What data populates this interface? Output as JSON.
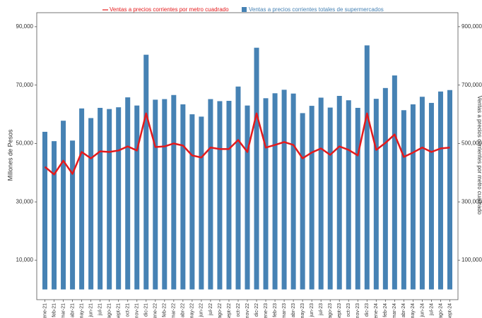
{
  "chart_data": {
    "type": "bar-line",
    "legend_line": "Ventas a precios corrientes por metro cuadrado",
    "legend_bar": "Ventas a precios corrientes totales de supermercados",
    "y_label": "Millones de Pesos",
    "y2_label": "Ventas a precios corrientes por metro cuadrado",
    "categories": [
      "ene-21",
      "feb-21",
      "mar-21",
      "abr-21",
      "may-21",
      "jun-21",
      "jul-21",
      "ago-21",
      "sept-21",
      "oct-21",
      "nov-21",
      "dic-21",
      "ene-22",
      "feb-22",
      "mar-22",
      "abr-22",
      "may-22",
      "jun-22",
      "jul-22",
      "ago-22",
      "sept-22",
      "oct-22",
      "nov-22",
      "dic-22",
      "ene-23",
      "feb-23",
      "mar-23",
      "abr-23",
      "may-23",
      "jun-23",
      "jul-23",
      "ago-23",
      "sept-23",
      "oct-23",
      "nov-23",
      "dic-23",
      "ene-24",
      "feb-24",
      "mar-24",
      "abr-24",
      "may-24",
      "jun-24",
      "jul-24",
      "ago-24",
      "sept-24"
    ],
    "series": [
      {
        "name": "Ventas a precios corrientes totales de supermercados",
        "kind": "bar",
        "color": "#4682b4",
        "values": [
          54000,
          50800,
          57800,
          51000,
          62000,
          58700,
          62200,
          61800,
          62400,
          65800,
          63000,
          80400,
          65000,
          65200,
          66600,
          63400,
          60000,
          59200,
          65200,
          64500,
          64600,
          69500,
          63000,
          82800,
          65500,
          67200,
          68400,
          67100,
          60400,
          62900,
          65700,
          62300,
          66300,
          64800,
          62200,
          83600,
          65300,
          69000,
          73300,
          61400,
          63400,
          66000,
          63900,
          67800,
          68300
        ]
      },
      {
        "name": "Ventas a precios corrientes por metro cuadrado",
        "kind": "line",
        "axis": "y2",
        "color": "#e41a1c",
        "values": [
          420000,
          394000,
          441000,
          396000,
          471000,
          449000,
          473000,
          471000,
          476000,
          490000,
          476000,
          603000,
          488000,
          490000,
          500000,
          493000,
          459000,
          452000,
          486000,
          481000,
          481000,
          512000,
          471000,
          603000,
          486000,
          495000,
          505000,
          495000,
          449000,
          469000,
          483000,
          461000,
          490000,
          478000,
          459000,
          603000,
          478000,
          502000,
          531000,
          454000,
          469000,
          486000,
          471000,
          483000,
          486000
        ]
      }
    ],
    "ylim": [
      -3500,
      94800
    ],
    "yticks": [
      {
        "value": 10000,
        "label": "10,000"
      },
      {
        "value": 30000,
        "label": "30,000"
      },
      {
        "value": 50000,
        "label": "50,000"
      },
      {
        "value": 70000,
        "label": "70,000"
      },
      {
        "value": 90000,
        "label": "90,000"
      }
    ],
    "y2lim": [
      -35000,
      948000
    ],
    "y2ticks": [
      {
        "value": 100000,
        "label": "100,000"
      },
      {
        "value": 300000,
        "label": "300,000"
      },
      {
        "value": 500000,
        "label": "500,000"
      },
      {
        "value": 700000,
        "label": "700,000"
      },
      {
        "value": 900000,
        "label": "900,000"
      }
    ]
  }
}
